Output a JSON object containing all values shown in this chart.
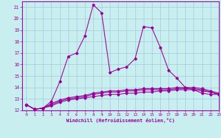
{
  "x_hours": [
    0,
    1,
    2,
    3,
    4,
    5,
    6,
    7,
    8,
    9,
    10,
    11,
    12,
    13,
    14,
    15,
    16,
    17,
    18,
    19,
    20,
    21,
    22,
    23
  ],
  "temp_main": [
    12.5,
    12.1,
    12.2,
    12.8,
    14.5,
    16.7,
    17.0,
    18.5,
    21.2,
    20.5,
    15.3,
    15.6,
    15.8,
    16.5,
    19.3,
    19.2,
    17.5,
    15.5,
    14.8,
    14.0,
    13.8,
    13.5,
    13.4,
    13.4
  ],
  "windchill1": [
    12.5,
    12.1,
    12.2,
    12.4,
    12.7,
    12.9,
    13.0,
    13.1,
    13.2,
    13.3,
    13.4,
    13.4,
    13.5,
    13.5,
    13.6,
    13.6,
    13.7,
    13.7,
    13.8,
    13.8,
    13.8,
    13.7,
    13.6,
    13.4
  ],
  "windchill2": [
    12.5,
    12.1,
    12.2,
    12.5,
    12.8,
    13.0,
    13.1,
    13.2,
    13.4,
    13.5,
    13.6,
    13.6,
    13.7,
    13.7,
    13.8,
    13.8,
    13.8,
    13.8,
    13.9,
    13.9,
    13.9,
    13.8,
    13.6,
    13.4
  ],
  "windchill3": [
    12.5,
    12.1,
    12.2,
    12.6,
    12.9,
    13.1,
    13.2,
    13.3,
    13.5,
    13.6,
    13.7,
    13.7,
    13.8,
    13.8,
    13.9,
    13.9,
    13.9,
    13.9,
    14.0,
    14.0,
    14.0,
    13.9,
    13.7,
    13.5
  ],
  "line_color": "#990099",
  "bg_color": "#c8eef0",
  "grid_color": "#a0c8d8",
  "xlabel": "Windchill (Refroidissement éolien,°C)",
  "ylim": [
    12,
    21.5
  ],
  "xlim": [
    -0.5,
    23
  ],
  "yticks": [
    12,
    13,
    14,
    15,
    16,
    17,
    18,
    19,
    20,
    21
  ],
  "xticks": [
    0,
    1,
    2,
    3,
    4,
    5,
    6,
    7,
    8,
    9,
    10,
    11,
    12,
    13,
    14,
    15,
    16,
    17,
    18,
    19,
    20,
    21,
    22,
    23
  ]
}
